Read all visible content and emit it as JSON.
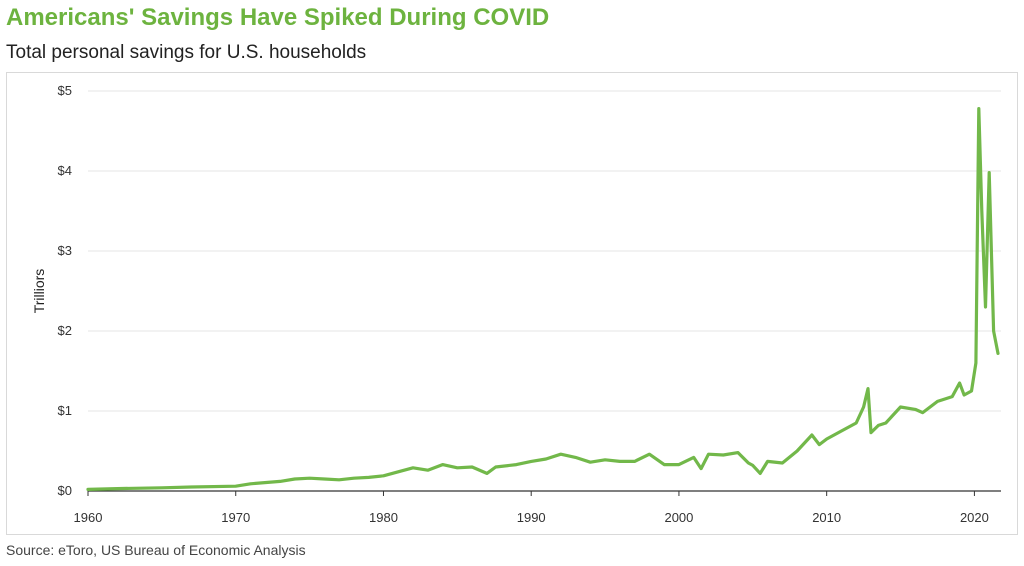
{
  "header": {
    "title": "Americans' Savings Have Spiked During COVID",
    "subtitle": "Total personal savings for U.S. households"
  },
  "footer": {
    "source": "Source: eToro, US Bureau of Economic Analysis"
  },
  "colors": {
    "title": "#6db33f",
    "line": "#72b84a",
    "grid": "#e6e6e6",
    "axis": "#333333"
  },
  "chart_data": {
    "type": "line",
    "title": "Americans' Savings Have Spiked During COVID",
    "subtitle": "Total personal savings for U.S. households",
    "xlabel": "",
    "ylabel": "Trilliors",
    "xlim": [
      1960,
      2021.8
    ],
    "ylim": [
      0,
      5
    ],
    "grid": "horizontal",
    "x_ticks": [
      1960,
      1970,
      1980,
      1990,
      2000,
      2010,
      2020
    ],
    "y_ticks": [
      {
        "value": 0,
        "label": "$0"
      },
      {
        "value": 1,
        "label": "$1"
      },
      {
        "value": 2,
        "label": "$2"
      },
      {
        "value": 3,
        "label": "$3"
      },
      {
        "value": 4,
        "label": "$4"
      },
      {
        "value": 5,
        "label": "$5"
      }
    ],
    "series": [
      {
        "name": "",
        "points": [
          [
            1960,
            0.02
          ],
          [
            1962,
            0.03
          ],
          [
            1965,
            0.04
          ],
          [
            1967,
            0.05
          ],
          [
            1970,
            0.06
          ],
          [
            1971,
            0.09
          ],
          [
            1973,
            0.12
          ],
          [
            1974,
            0.15
          ],
          [
            1975,
            0.16
          ],
          [
            1976,
            0.15
          ],
          [
            1977,
            0.14
          ],
          [
            1978,
            0.16
          ],
          [
            1979,
            0.17
          ],
          [
            1980,
            0.19
          ],
          [
            1981,
            0.24
          ],
          [
            1982,
            0.29
          ],
          [
            1983,
            0.26
          ],
          [
            1984,
            0.33
          ],
          [
            1985,
            0.29
          ],
          [
            1986,
            0.3
          ],
          [
            1987,
            0.22
          ],
          [
            1987.6,
            0.3
          ],
          [
            1989,
            0.33
          ],
          [
            1990,
            0.37
          ],
          [
            1991,
            0.4
          ],
          [
            1992,
            0.46
          ],
          [
            1993,
            0.42
          ],
          [
            1994,
            0.36
          ],
          [
            1995,
            0.39
          ],
          [
            1996,
            0.37
          ],
          [
            1997,
            0.37
          ],
          [
            1998,
            0.46
          ],
          [
            1999,
            0.33
          ],
          [
            2000,
            0.33
          ],
          [
            2001,
            0.42
          ],
          [
            2001.5,
            0.28
          ],
          [
            2002,
            0.46
          ],
          [
            2003,
            0.45
          ],
          [
            2004,
            0.48
          ],
          [
            2004.7,
            0.35
          ],
          [
            2005,
            0.32
          ],
          [
            2005.5,
            0.22
          ],
          [
            2006,
            0.37
          ],
          [
            2007,
            0.35
          ],
          [
            2008,
            0.5
          ],
          [
            2008.5,
            0.6
          ],
          [
            2009,
            0.7
          ],
          [
            2009.5,
            0.58
          ],
          [
            2010,
            0.65
          ],
          [
            2011,
            0.75
          ],
          [
            2012,
            0.85
          ],
          [
            2012.5,
            1.05
          ],
          [
            2012.8,
            1.28
          ],
          [
            2013,
            0.73
          ],
          [
            2013.5,
            0.82
          ],
          [
            2014,
            0.85
          ],
          [
            2015,
            1.05
          ],
          [
            2016,
            1.02
          ],
          [
            2016.5,
            0.98
          ],
          [
            2017,
            1.05
          ],
          [
            2017.5,
            1.12
          ],
          [
            2018,
            1.15
          ],
          [
            2018.5,
            1.18
          ],
          [
            2019,
            1.35
          ],
          [
            2019.3,
            1.2
          ],
          [
            2019.8,
            1.25
          ],
          [
            2020.1,
            1.6
          ],
          [
            2020.3,
            4.78
          ],
          [
            2020.5,
            3.5
          ],
          [
            2020.75,
            2.3
          ],
          [
            2021,
            3.98
          ],
          [
            2021.3,
            2.0
          ],
          [
            2021.6,
            1.72
          ]
        ]
      }
    ]
  }
}
